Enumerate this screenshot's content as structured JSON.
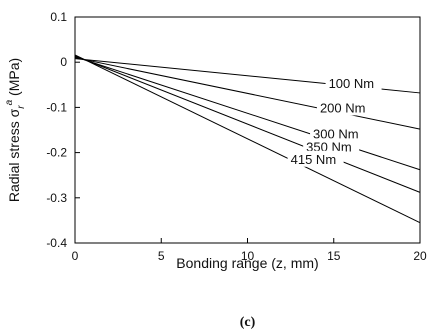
{
  "caption": "(c)",
  "chart_data": {
    "type": "line",
    "xlabel": "Bonding range (z, mm)",
    "ylabel": "Radial stress σ_r^a (MPa)",
    "ylabel_main": "Radial stress σ",
    "ylabel_sub": "r",
    "ylabel_sup": "a",
    "ylabel_unit": " (MPa)",
    "xlim": [
      0,
      20
    ],
    "ylim": [
      -0.4,
      0.1
    ],
    "xticks": [
      0,
      5,
      10,
      15,
      20
    ],
    "yticks": [
      0.1,
      0,
      -0.1,
      -0.2,
      -0.3,
      -0.4
    ],
    "xtick_labels": [
      "0",
      "5",
      "10",
      "15",
      "20"
    ],
    "ytick_labels": [
      "0.1",
      "0",
      "-0.1",
      "-0.2",
      "-0.3",
      "-0.4"
    ],
    "grid": false,
    "series": [
      {
        "name": "100 Nm",
        "x": [
          0,
          20
        ],
        "y": [
          0.008,
          -0.068
        ]
      },
      {
        "name": "200 Nm",
        "x": [
          0,
          20
        ],
        "y": [
          0.01,
          -0.148
        ]
      },
      {
        "name": "300 Nm",
        "x": [
          0,
          20
        ],
        "y": [
          0.012,
          -0.238
        ]
      },
      {
        "name": "350 Nm",
        "x": [
          0,
          20
        ],
        "y": [
          0.014,
          -0.288
        ]
      },
      {
        "name": "415 Nm",
        "x": [
          0,
          20
        ],
        "y": [
          0.016,
          -0.355
        ]
      }
    ]
  }
}
